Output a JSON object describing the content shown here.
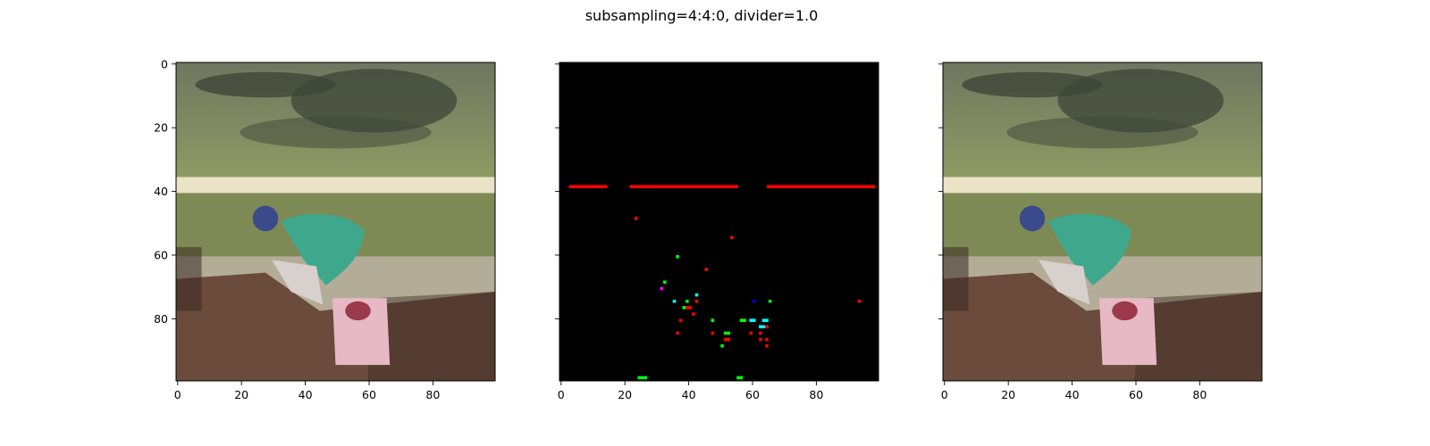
{
  "figure": {
    "title": "subsampling=4:4:0, divider=1.0"
  },
  "chart_data": [
    {
      "type": "image",
      "panel": "left",
      "content": "decoded-photo",
      "xlim": [
        0,
        99
      ],
      "ylim": [
        99,
        0
      ],
      "xticks": [
        0,
        20,
        40,
        60,
        80
      ],
      "yticks": [
        0,
        20,
        40,
        60,
        80
      ],
      "show_yticklabels": true,
      "colors": {
        "sky_top": "#6f7660",
        "sky_dark": "#3e4638",
        "grass": "#8f9a64",
        "rail": "#eae3c6",
        "field": "#7d8a55",
        "dirt": "#b3ad98",
        "horse": "#6a4b3c",
        "horse_dark": "#3b2a22",
        "silks": "#3fa88c",
        "helmet": "#3a4a8a",
        "saddlecloth": "#e6b9c4"
      }
    },
    {
      "type": "heatmap",
      "panel": "middle",
      "content": "difference-map",
      "background": "#000000",
      "xlim": [
        0,
        99
      ],
      "ylim": [
        99,
        0
      ],
      "xticks": [
        0,
        20,
        40,
        60,
        80
      ],
      "yticks": [
        0,
        20,
        40,
        60,
        80
      ],
      "show_yticklabels": false,
      "segments": [
        {
          "x0": 3,
          "x1": 15,
          "y": 39,
          "color": "#ff0000"
        },
        {
          "x0": 22,
          "x1": 56,
          "y": 39,
          "color": "#ff0000"
        },
        {
          "x0": 65,
          "x1": 99,
          "y": 39,
          "color": "#ff0000"
        }
      ],
      "points": [
        {
          "x": 24,
          "y": 49,
          "w": 1,
          "color": "#ff0000"
        },
        {
          "x": 54,
          "y": 55,
          "w": 1,
          "color": "#ff0000"
        },
        {
          "x": 37,
          "y": 61,
          "w": 1,
          "color": "#00ff00"
        },
        {
          "x": 46,
          "y": 65,
          "w": 1,
          "color": "#ff0000"
        },
        {
          "x": 33,
          "y": 69,
          "w": 1,
          "color": "#00ff00"
        },
        {
          "x": 32,
          "y": 71,
          "w": 1,
          "color": "#ff00ff"
        },
        {
          "x": 43,
          "y": 73,
          "w": 1,
          "color": "#00ffff"
        },
        {
          "x": 36,
          "y": 75,
          "w": 1,
          "color": "#00ffff"
        },
        {
          "x": 40,
          "y": 75,
          "w": 1,
          "color": "#00ff00"
        },
        {
          "x": 43,
          "y": 75,
          "w": 1,
          "color": "#ff0000"
        },
        {
          "x": 61,
          "y": 75,
          "w": 1,
          "color": "#0000ff"
        },
        {
          "x": 66,
          "y": 75,
          "w": 1,
          "color": "#00ff00"
        },
        {
          "x": 94,
          "y": 75,
          "w": 1,
          "color": "#ff0000"
        },
        {
          "x": 39,
          "y": 77,
          "w": 1,
          "color": "#00ff00"
        },
        {
          "x": 40,
          "y": 77,
          "w": 2,
          "color": "#ff0000"
        },
        {
          "x": 42,
          "y": 79,
          "w": 1,
          "color": "#ff0000"
        },
        {
          "x": 38,
          "y": 81,
          "w": 1,
          "color": "#ff0000"
        },
        {
          "x": 48,
          "y": 81,
          "w": 1,
          "color": "#00ff00"
        },
        {
          "x": 57,
          "y": 81,
          "w": 2,
          "color": "#00ff00"
        },
        {
          "x": 60,
          "y": 81,
          "w": 2,
          "color": "#00ffff"
        },
        {
          "x": 64,
          "y": 81,
          "w": 2,
          "color": "#00ffff"
        },
        {
          "x": 63,
          "y": 83,
          "w": 2,
          "color": "#00ffff"
        },
        {
          "x": 65,
          "y": 83,
          "w": 1,
          "color": "#ff0000"
        },
        {
          "x": 37,
          "y": 85,
          "w": 1,
          "color": "#ff0000"
        },
        {
          "x": 48,
          "y": 85,
          "w": 1,
          "color": "#ff0000"
        },
        {
          "x": 52,
          "y": 85,
          "w": 2,
          "color": "#00ff00"
        },
        {
          "x": 60,
          "y": 85,
          "w": 1,
          "color": "#ff0000"
        },
        {
          "x": 63,
          "y": 85,
          "w": 1,
          "color": "#ff0000"
        },
        {
          "x": 52,
          "y": 87,
          "w": 2,
          "color": "#ff0000"
        },
        {
          "x": 63,
          "y": 87,
          "w": 1,
          "color": "#ff0000"
        },
        {
          "x": 65,
          "y": 87,
          "w": 1,
          "color": "#ff0000"
        },
        {
          "x": 51,
          "y": 89,
          "w": 1,
          "color": "#00ff00"
        },
        {
          "x": 65,
          "y": 89,
          "w": 1,
          "color": "#ff0000"
        },
        {
          "x": 25,
          "y": 99,
          "w": 3,
          "color": "#00ff00"
        },
        {
          "x": 56,
          "y": 99,
          "w": 2,
          "color": "#00ff00"
        }
      ]
    },
    {
      "type": "image",
      "panel": "right",
      "content": "original-photo",
      "xlim": [
        0,
        99
      ],
      "ylim": [
        99,
        0
      ],
      "xticks": [
        0,
        20,
        40,
        60,
        80
      ],
      "yticks": [
        0,
        20,
        40,
        60,
        80
      ],
      "show_yticklabels": false,
      "colors": {
        "sky_top": "#6f7660",
        "sky_dark": "#3e4638",
        "grass": "#8f9a64",
        "rail": "#eae3c6",
        "field": "#7d8a55",
        "dirt": "#b3ad98",
        "horse": "#6a4b3c",
        "horse_dark": "#3b2a22",
        "silks": "#3fa88c",
        "helmet": "#3a4a8a",
        "saddlecloth": "#e6b9c4"
      }
    }
  ]
}
